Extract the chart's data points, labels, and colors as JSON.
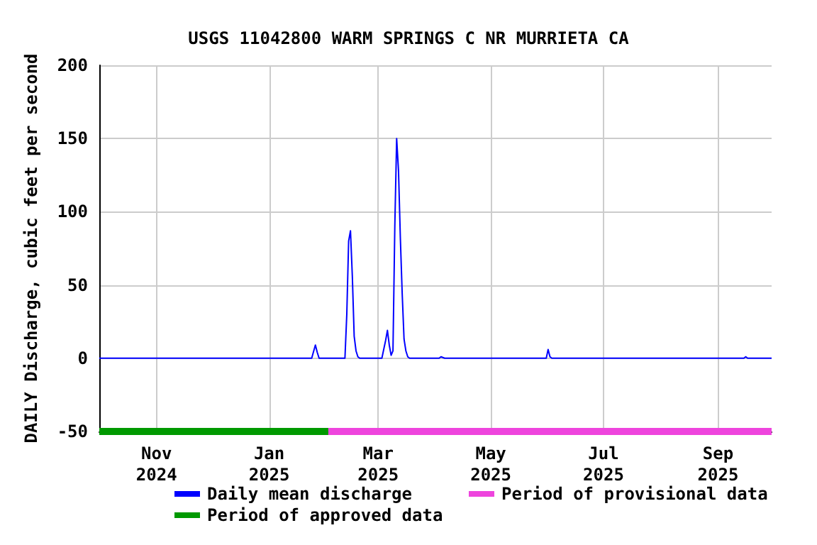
{
  "chart_data": {
    "type": "line",
    "title": "USGS 11042800 WARM SPRINGS C NR MURRIETA CA",
    "ylabel": "DAILY Discharge, cubic feet per second",
    "series": [
      {
        "name": "Daily mean discharge",
        "color": "#0000ff",
        "x": [
          "2024-10-01",
          "2025-01-24",
          "2025-01-26",
          "2025-01-27",
          "2025-01-28",
          "2025-02-11",
          "2025-02-12",
          "2025-02-13",
          "2025-02-14",
          "2025-02-15",
          "2025-02-16",
          "2025-02-17",
          "2025-02-18",
          "2025-02-19",
          "2025-03-03",
          "2025-03-05",
          "2025-03-06",
          "2025-03-07",
          "2025-03-08",
          "2025-03-09",
          "2025-03-10",
          "2025-03-11",
          "2025-03-12",
          "2025-03-13",
          "2025-03-14",
          "2025-03-15",
          "2025-03-16",
          "2025-03-17",
          "2025-03-18",
          "2025-04-03",
          "2025-04-04",
          "2025-04-06",
          "2025-05-31",
          "2025-06-01",
          "2025-06-02",
          "2025-06-03",
          "2025-09-15",
          "2025-09-16",
          "2025-09-17",
          "2025-09-30"
        ],
        "values": [
          0,
          0,
          9,
          4,
          0,
          0,
          30,
          80,
          87,
          56,
          15,
          5,
          1,
          0,
          0,
          12,
          19,
          9,
          2,
          5,
          90,
          150,
          128,
          82,
          44,
          13,
          5,
          1,
          0,
          0,
          1,
          0,
          0,
          6,
          1,
          0,
          0,
          1,
          0,
          0
        ]
      },
      {
        "name": "Period of approved data",
        "color": "#009900",
        "x": [
          "2024-10-01",
          "2025-02-02"
        ],
        "values": [
          -50,
          -50
        ]
      },
      {
        "name": "Period of provisional data",
        "color": "#ee44dd",
        "x": [
          "2025-02-02",
          "2025-09-30"
        ],
        "values": [
          -50,
          -50
        ]
      }
    ],
    "xlim": [
      "2024-10-01",
      "2025-09-30"
    ],
    "xticks": [
      {
        "value": "2024-11-01",
        "label": "Nov\n2024"
      },
      {
        "value": "2025-01-01",
        "label": "Jan\n2025"
      },
      {
        "value": "2025-03-01",
        "label": "Mar\n2025"
      },
      {
        "value": "2025-05-01",
        "label": "May\n2025"
      },
      {
        "value": "2025-07-01",
        "label": "Jul\n2025"
      },
      {
        "value": "2025-09-01",
        "label": "Sep\n2025"
      }
    ],
    "ylim": [
      -50,
      200
    ],
    "yticks": [
      -50,
      0,
      50,
      100,
      150,
      200
    ],
    "grid": true,
    "legend": "bottom",
    "line_style": "solid",
    "marker": "none"
  }
}
